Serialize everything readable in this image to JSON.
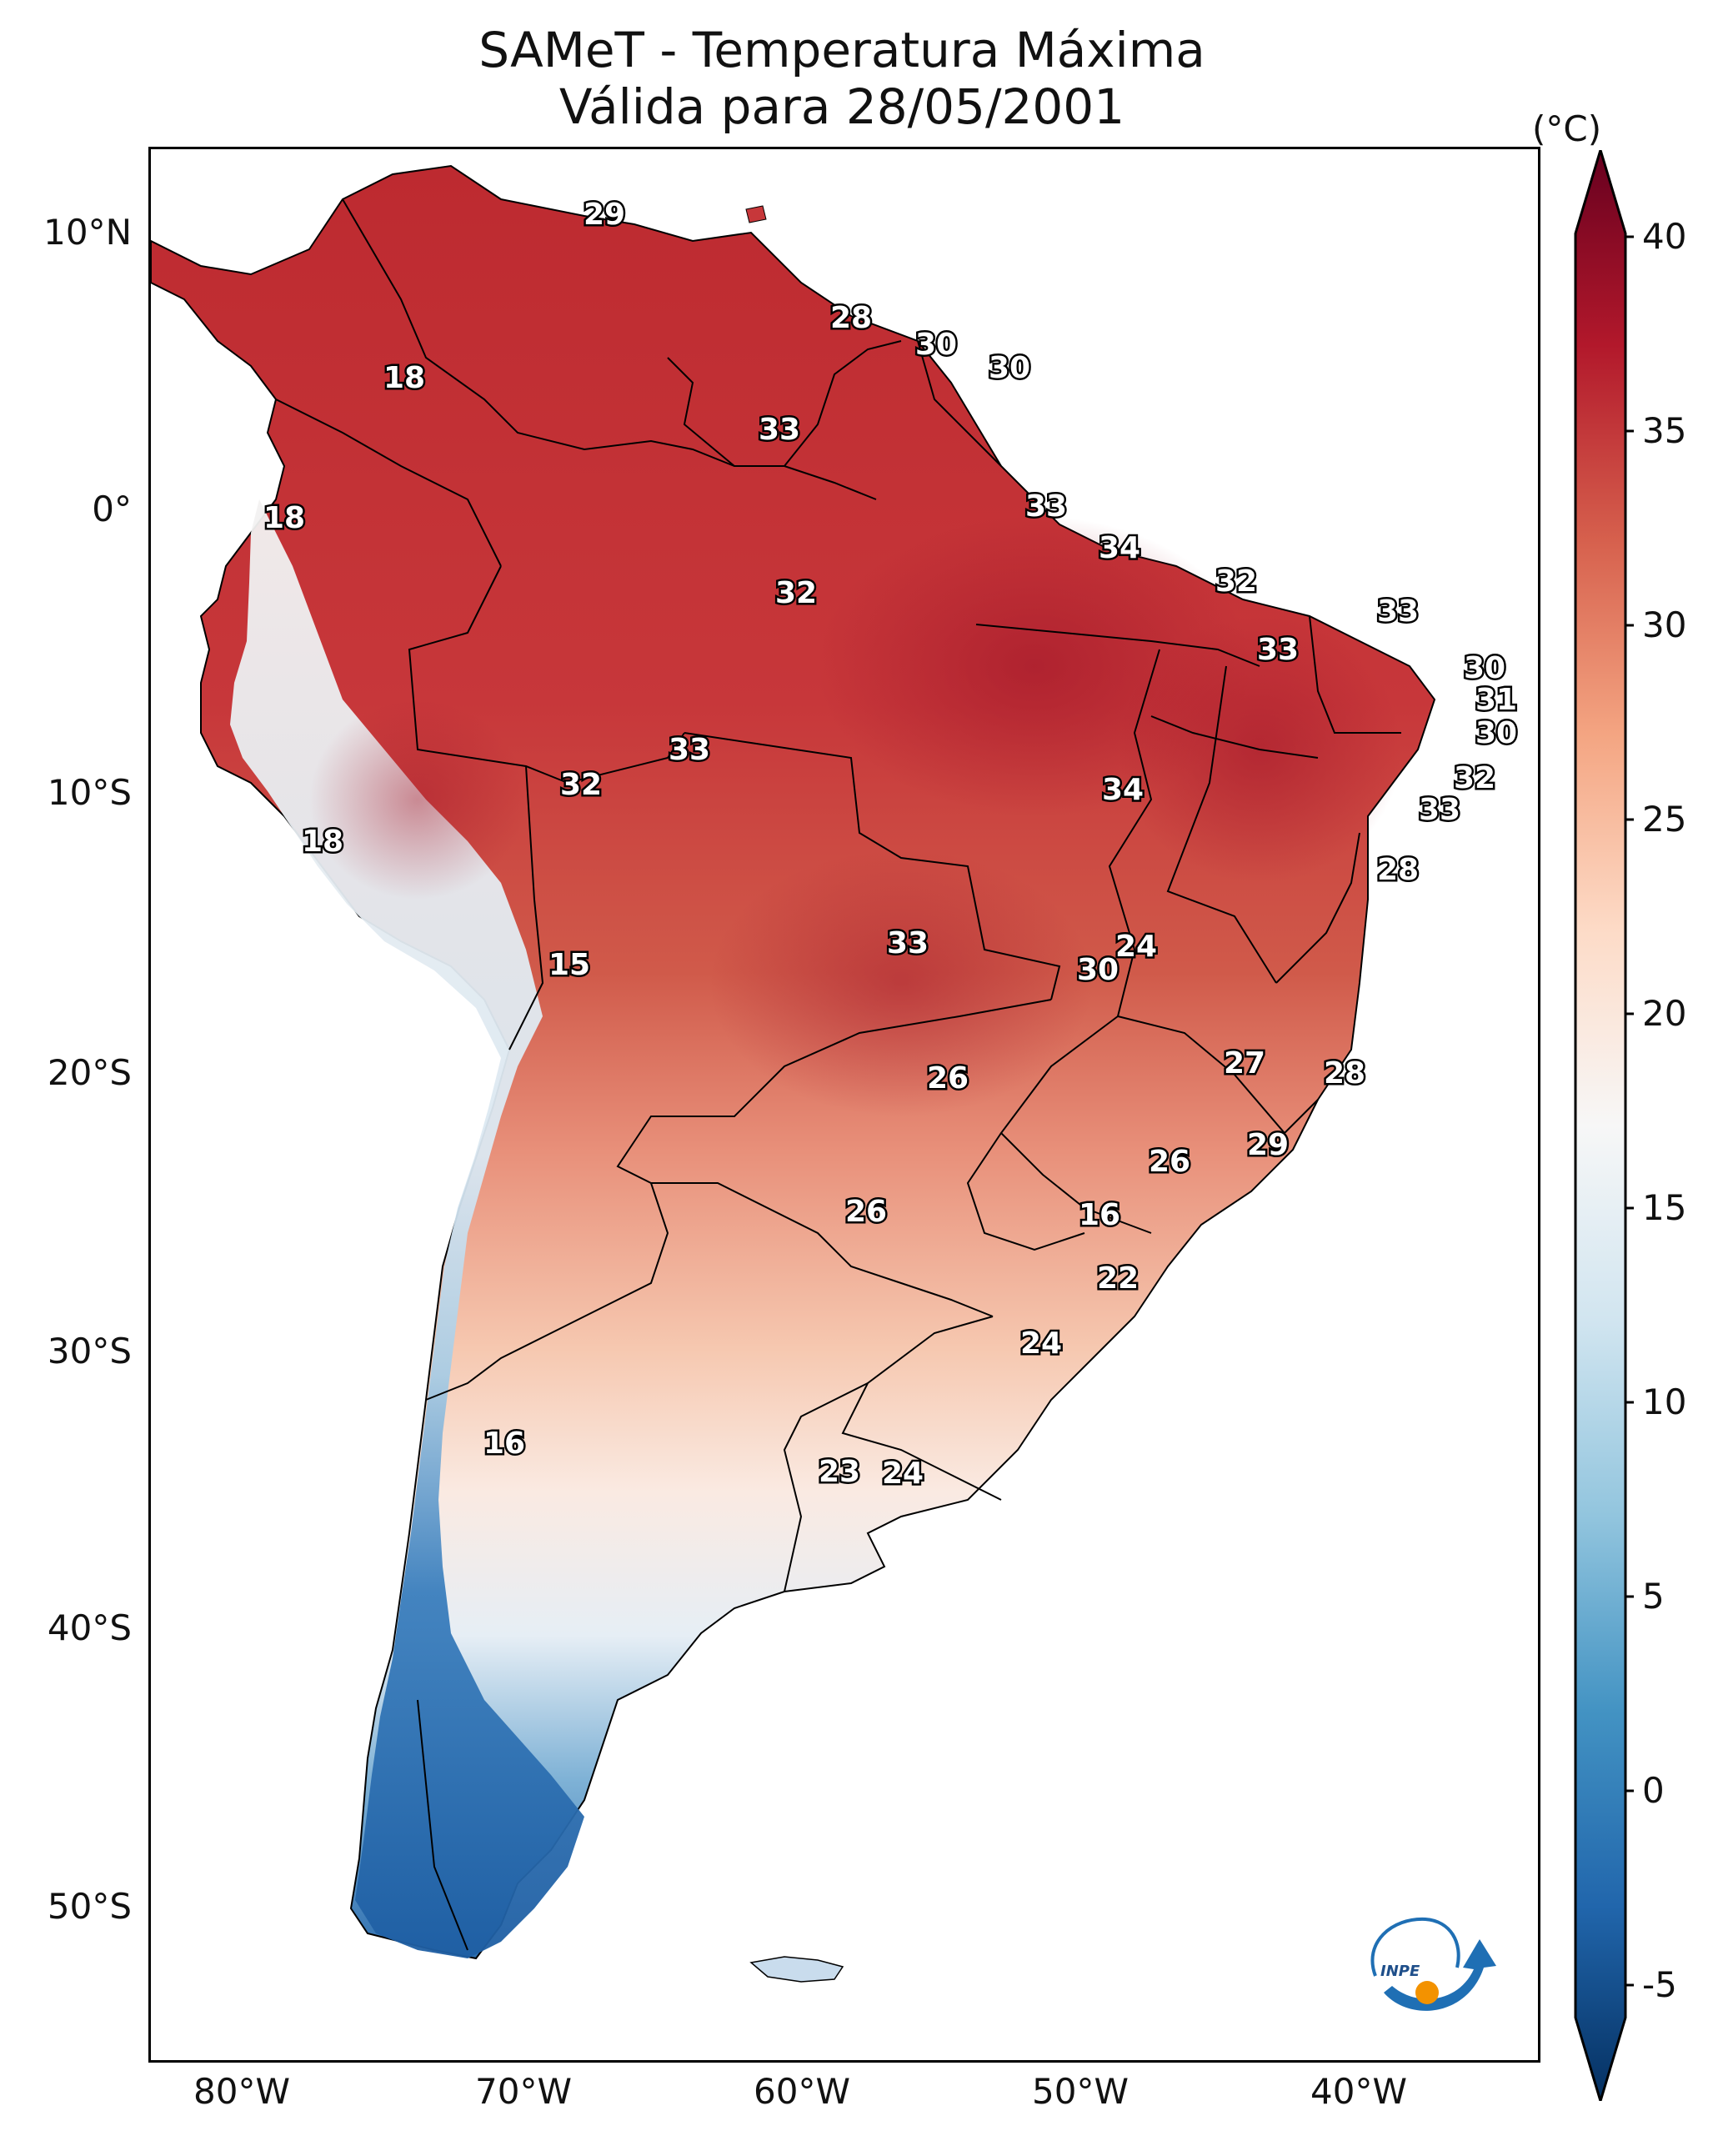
{
  "title_line1": "SAMeT - Temperatura Máxima",
  "title_line2": "Válida para 28/05/2001",
  "colorbar": {
    "unit": "(°C)",
    "ticks": [
      "40",
      "35",
      "30",
      "25",
      "20",
      "15",
      "10",
      "5",
      "0",
      "-5"
    ],
    "min": -7,
    "max": 42,
    "colors": [
      "#053061",
      "#2166ac",
      "#4393c3",
      "#92c5de",
      "#d1e5f0",
      "#f7f7f7",
      "#fddbc7",
      "#f4a582",
      "#d6604d",
      "#b2182b",
      "#67001f"
    ]
  },
  "axes": {
    "lat_labels": [
      "10°N",
      "0°",
      "10°S",
      "20°S",
      "30°S",
      "40°S",
      "50°S"
    ],
    "lon_labels": [
      "80°W",
      "70°W",
      "60°W",
      "50°W",
      "40°W"
    ]
  },
  "temperature_labels": [
    "29",
    "18",
    "28",
    "30",
    "30",
    "33",
    "18",
    "33",
    "34",
    "32",
    "32",
    "33",
    "33",
    "30",
    "31",
    "30",
    "33",
    "32",
    "34",
    "32",
    "18",
    "33",
    "28",
    "33",
    "24",
    "15",
    "30",
    "26",
    "27",
    "28",
    "26",
    "29",
    "26",
    "16",
    "22",
    "24",
    "16",
    "23",
    "24"
  ],
  "logo_text": "INPE",
  "colors": {
    "ocean": "#ffffff",
    "border": "#000000",
    "accent_logo_blue": "#1f6fb4",
    "accent_logo_orange": "#f39200"
  }
}
